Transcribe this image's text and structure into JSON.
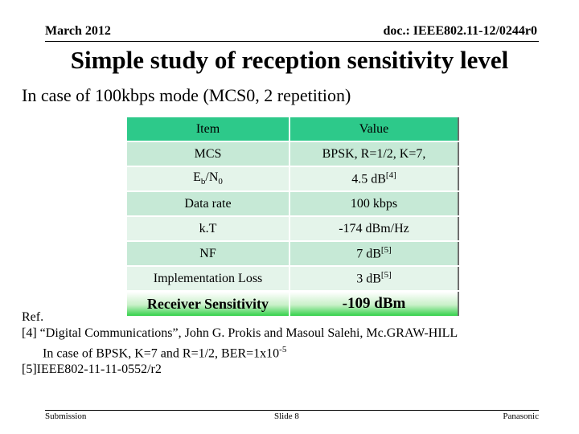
{
  "header": {
    "date": "March 2012",
    "doc": "doc.: IEEE802.11-12/0244r0"
  },
  "title": "Simple study of reception sensitivity level",
  "subtitle": "In case of 100kbps mode (MCS0, 2 repetition)",
  "table": {
    "head": {
      "item": "Item",
      "value": "Value"
    },
    "rows": [
      {
        "item": "MCS",
        "value": "BPSK, R=1/2, K=7,"
      },
      {
        "item_main": "E",
        "item_sub1": "b",
        "item_mid": "/N",
        "item_sub2": "0",
        "value_main": "4.5 dB",
        "value_sup": "[4]"
      },
      {
        "item": "Data rate",
        "value": "100 kbps"
      },
      {
        "item": "k.T",
        "value": "-174 dBm/Hz"
      },
      {
        "item": "NF",
        "value_main": "7 dB",
        "value_sup": "[5]"
      },
      {
        "item": "Implementation Loss",
        "value_main": "3 dB",
        "value_sup": "[5]"
      },
      {
        "item": "Receiver Sensitivity",
        "value": "-109 dBm"
      }
    ]
  },
  "refs": {
    "heading": "Ref.",
    "r4": "[4] “Digital Communications”, John G. Prokis and Masoul Salehi, Mc.GRAW-HILL",
    "r4b_main": "In case of BPSK, K=7 and R=1/2, BER=1x10",
    "r4b_sup": "-5",
    "r5": "[5]IEEE802-11-11-0552/r2"
  },
  "footer": {
    "left": "Submission",
    "center": "Slide 8",
    "right": "Panasonic"
  }
}
